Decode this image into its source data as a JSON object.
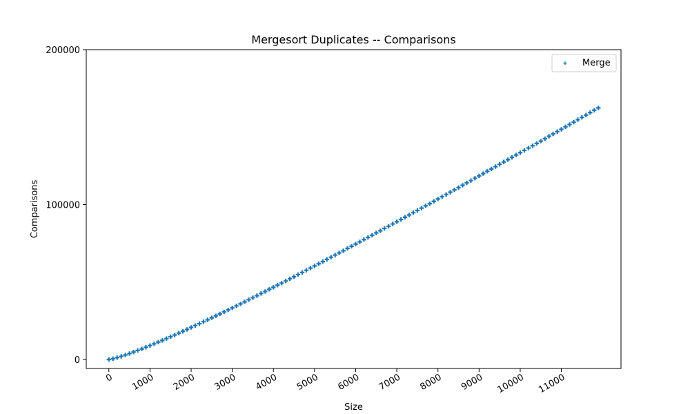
{
  "chart_data": {
    "type": "scatter",
    "title": "Mergesort Duplicates -- Comparisons",
    "xlabel": "Size",
    "ylabel": "Comparisons",
    "xlim": [
      -550,
      12450
    ],
    "ylim": [
      -5800,
      200000
    ],
    "xticks": [
      0,
      1000,
      2000,
      3000,
      4000,
      5000,
      6000,
      7000,
      8000,
      9000,
      10000,
      11000
    ],
    "xtick_labels": [
      "0",
      "1000",
      "2000",
      "3000",
      "4000",
      "5000",
      "6000",
      "7000",
      "8000",
      "9000",
      "10000",
      "11000"
    ],
    "yticks": [
      0,
      100000,
      200000
    ],
    "ytick_labels": [
      "0",
      "100000",
      "200000"
    ],
    "grid": false,
    "legend": {
      "position": "top-right",
      "entries": [
        "Merge"
      ]
    },
    "color": "#1f77b4",
    "series": [
      {
        "name": "Merge",
        "marker": "plus",
        "x": [
          0,
          100,
          200,
          300,
          400,
          500,
          600,
          700,
          800,
          900,
          1000,
          1100,
          1200,
          1300,
          1400,
          1500,
          1600,
          1700,
          1800,
          1900,
          2000,
          2100,
          2200,
          2300,
          2400,
          2500,
          2600,
          2700,
          2800,
          2900,
          3000,
          3100,
          3200,
          3300,
          3400,
          3500,
          3600,
          3700,
          3800,
          3900,
          4000,
          4100,
          4200,
          4300,
          4400,
          4500,
          4600,
          4700,
          4800,
          4900,
          5000,
          5100,
          5200,
          5300,
          5400,
          5500,
          5600,
          5700,
          5800,
          5900,
          6000,
          6100,
          6200,
          6300,
          6400,
          6500,
          6600,
          6700,
          6800,
          6900,
          7000,
          7100,
          7200,
          7300,
          7400,
          7500,
          7600,
          7700,
          7800,
          7900,
          8000,
          8100,
          8200,
          8300,
          8400,
          8500,
          8600,
          8700,
          8800,
          8900,
          9000,
          9100,
          9200,
          9300,
          9400,
          9500,
          9600,
          9700,
          9800,
          9900,
          10000,
          10100,
          10200,
          10300,
          10400,
          10500,
          10600,
          10700,
          10800,
          10900,
          11000,
          11100,
          11200,
          11300,
          11400,
          11500,
          11600,
          11700,
          11800,
          11900
        ],
        "y": [
          0,
          500,
          1200,
          2000,
          2900,
          3800,
          4800,
          5800,
          6800,
          7900,
          9000,
          10100,
          11200,
          12300,
          13500,
          14700,
          15800,
          17000,
          18200,
          19400,
          20700,
          21900,
          23100,
          24400,
          25600,
          26900,
          28200,
          29400,
          30700,
          32000,
          33300,
          34600,
          35900,
          37200,
          38600,
          39900,
          41200,
          42600,
          43900,
          45300,
          46600,
          48000,
          49300,
          50700,
          52100,
          53400,
          54800,
          56200,
          57600,
          59000,
          60400,
          61800,
          63200,
          64600,
          66000,
          67400,
          68800,
          70200,
          71700,
          73100,
          74500,
          75900,
          77400,
          78800,
          80200,
          81700,
          83100,
          84600,
          86000,
          87500,
          88900,
          90400,
          91800,
          93300,
          94800,
          96200,
          97700,
          99200,
          100600,
          102100,
          103600,
          105100,
          106500,
          108000,
          109500,
          111000,
          112500,
          114000,
          115500,
          117000,
          118500,
          120000,
          121500,
          123000,
          124500,
          126000,
          127500,
          129000,
          130500,
          132000,
          133500,
          135000,
          136500,
          138000,
          139500,
          141000,
          142500,
          144100,
          145600,
          147100,
          148600,
          150200,
          151700,
          153200,
          154800,
          156300,
          157800,
          159400,
          160900,
          162400
        ]
      }
    ]
  }
}
